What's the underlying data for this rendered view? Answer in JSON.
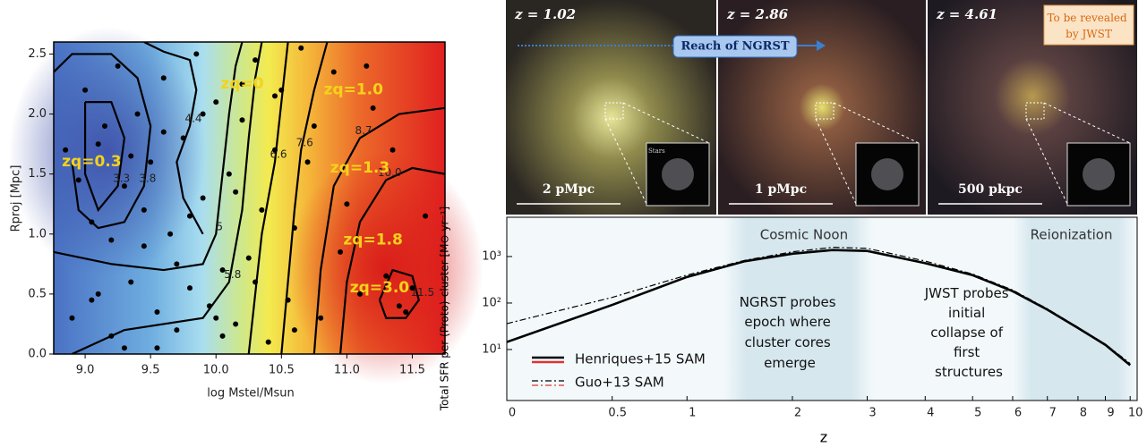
{
  "chart_data": [
    {
      "type": "contour",
      "xlabel": "log Mstel/Msun",
      "ylabel": "Rproj [Mpc]",
      "xlim": [
        8.76,
        11.75
      ],
      "ylim": [
        0,
        2.6
      ],
      "xticks": [
        {
          "value": 9,
          "label": "9.0"
        },
        {
          "value": 9.5,
          "label": "9.5"
        },
        {
          "value": 10,
          "label": "10.0"
        },
        {
          "value": 10.5,
          "label": "10.5"
        },
        {
          "value": 11,
          "label": "11.0"
        },
        {
          "value": 11.5,
          "label": "11.5"
        }
      ],
      "yticks": [
        {
          "value": 0,
          "label": "0.0"
        },
        {
          "value": 0.5,
          "label": "0.5"
        },
        {
          "value": 1,
          "label": "1.0"
        },
        {
          "value": 1.5,
          "label": "1.5"
        },
        {
          "value": 2,
          "label": "2.0"
        },
        {
          "value": 2.5,
          "label": "2.5"
        }
      ],
      "contours": [
        {
          "level": 4.4,
          "x": [
            9.45,
            9.6,
            9.8,
            9.85,
            9.8,
            9.7,
            9.75,
            9.9
          ],
          "y": [
            2.6,
            2.52,
            2.45,
            2.2,
            1.9,
            1.6,
            1.3,
            1.0
          ]
        },
        {
          "level": 3.8,
          "x": [
            8.76,
            8.9,
            9.2,
            9.4,
            9.5,
            9.45,
            9.3,
            9.1,
            8.95,
            8.9
          ],
          "y": [
            2.35,
            2.5,
            2.5,
            2.3,
            1.9,
            1.4,
            1.1,
            1.05,
            1.2,
            1.6
          ]
        },
        {
          "level": 3.3,
          "x": [
            9.0,
            9.2,
            9.3,
            9.25,
            9.1,
            9.0,
            9.0
          ],
          "y": [
            2.1,
            2.1,
            1.8,
            1.4,
            1.2,
            1.5,
            2.1
          ]
        },
        {
          "level": 5.0,
          "x": [
            8.76,
            9.2,
            9.6,
            9.9,
            10.0,
            10.05,
            10.1,
            10.15,
            10.2
          ],
          "y": [
            0.85,
            0.75,
            0.7,
            0.75,
            1.0,
            1.5,
            2.0,
            2.4,
            2.6
          ]
        },
        {
          "level": 5.8,
          "x": [
            8.9,
            9.3,
            9.6,
            9.9,
            10.1,
            10.2,
            10.25,
            10.3,
            10.35
          ],
          "y": [
            0.0,
            0.2,
            0.25,
            0.3,
            0.6,
            1.2,
            1.8,
            2.3,
            2.6
          ]
        },
        {
          "level": 6.6,
          "x": [
            10.25,
            10.3,
            10.35,
            10.45,
            10.5,
            10.55
          ],
          "y": [
            0,
            0.5,
            1.0,
            1.6,
            2.1,
            2.6
          ]
        },
        {
          "level": 7.6,
          "x": [
            10.5,
            10.55,
            10.6,
            10.65,
            10.75,
            10.85
          ],
          "y": [
            0,
            0.6,
            1.2,
            1.7,
            2.2,
            2.6
          ]
        },
        {
          "level": 8.7,
          "x": [
            10.75,
            10.8,
            10.9,
            11.1,
            11.4,
            11.75
          ],
          "y": [
            0,
            0.7,
            1.4,
            1.8,
            2.0,
            2.05
          ]
        },
        {
          "level": {
            "value": 10,
            "label": "10.0"
          },
          "x": [
            10.95,
            11.0,
            11.1,
            11.3,
            11.5,
            11.75
          ],
          "y": [
            0,
            0.6,
            1.1,
            1.45,
            1.55,
            1.5
          ]
        },
        {
          "level": 11.5,
          "x": [
            11.25,
            11.35,
            11.5,
            11.55,
            11.45,
            11.3,
            11.25
          ],
          "y": [
            0.45,
            0.7,
            0.65,
            0.45,
            0.3,
            0.3,
            0.45
          ]
        }
      ],
      "scatter": {
        "color": "#000",
        "x": [
          8.85,
          8.9,
          9.0,
          9.05,
          9.1,
          9.15,
          9.2,
          9.25,
          9.3,
          9.35,
          9.4,
          9.45,
          9.5,
          9.55,
          9.6,
          9.65,
          9.7,
          9.75,
          9.8,
          9.85,
          9.9,
          9.95,
          10.0,
          10.05,
          10.1,
          10.15,
          10.2,
          10.25,
          10.3,
          10.35,
          10.4,
          10.45,
          10.5,
          10.55,
          10.6,
          10.65,
          10.7,
          10.8,
          10.9,
          11.0,
          11.1,
          11.2,
          11.3,
          11.4,
          11.5,
          11.6,
          8.95,
          9.1,
          9.2,
          9.3,
          9.45,
          9.6,
          9.7,
          9.9,
          10.05,
          10.15,
          10.3,
          10.45,
          10.6,
          10.75,
          10.95,
          11.15,
          11.35,
          11.45,
          9.05,
          9.35,
          9.55,
          9.8,
          10.0,
          10.2
        ],
        "y": [
          1.7,
          0.3,
          2.2,
          1.1,
          0.5,
          1.9,
          0.15,
          2.4,
          1.4,
          0.6,
          2.0,
          0.9,
          1.6,
          0.35,
          2.3,
          1.0,
          0.2,
          1.8,
          0.55,
          2.5,
          1.3,
          0.4,
          2.1,
          0.7,
          1.5,
          0.25,
          1.95,
          0.8,
          2.45,
          1.2,
          0.1,
          1.7,
          2.2,
          0.45,
          1.05,
          2.55,
          1.6,
          0.3,
          2.35,
          1.25,
          0.5,
          2.05,
          0.65,
          0.4,
          0.55,
          1.15,
          1.45,
          1.75,
          0.95,
          0.05,
          1.2,
          1.85,
          0.75,
          2.0,
          0.15,
          1.35,
          0.6,
          2.15,
          0.2,
          1.9,
          0.85,
          2.4,
          1.7,
          0.35,
          0.45,
          1.65,
          0.05,
          1.15,
          0.3,
          2.25
        ]
      },
      "annotations": [
        "zq=0.3",
        "zq=0",
        "zq=1.0",
        "zq=1.3",
        "zq=1.8",
        "zq=3.0"
      ]
    },
    {
      "type": "line",
      "xlabel": "z",
      "ylabel": "Total SFR per (Proto)-cluster [M⊙ yr⁻¹]",
      "xscale": "log1p",
      "yscale": "log",
      "xlim": [
        0,
        10.3
      ],
      "ylim": [
        0.8,
        7000
      ],
      "xticks": [
        0,
        0.5,
        1,
        2,
        3,
        4,
        5,
        6,
        7,
        8,
        9,
        10
      ],
      "yticks": [
        {
          "value": 10,
          "label": "10¹"
        },
        {
          "value": 100,
          "label": "10²"
        },
        {
          "value": 1000,
          "label": "10³"
        }
      ],
      "x": [
        0,
        0.5,
        1,
        1.5,
        2,
        2.5,
        3,
        4,
        5,
        6,
        7,
        8,
        9,
        10
      ],
      "series": [
        {
          "name": "Henriques+15 SAM",
          "color": "#000",
          "values": [
            14.5,
            91,
            363,
            794,
            1150,
            1380,
            1320,
            720,
            398,
            180,
            72,
            29,
            12.6,
            4.6
          ]
        },
        {
          "name": "Guo+13 SAM",
          "color": "#000",
          "values": [
            36,
            132,
            400,
            830,
            1260,
            1580,
            1500,
            800,
            420,
            190,
            75,
            30,
            13,
            5
          ]
        }
      ],
      "bands": [
        {
          "label": "Cosmic Noon",
          "range": [
            1.4,
            3.1
          ]
        },
        {
          "label": "Reionization",
          "range": [
            6.3,
            10.3
          ]
        }
      ],
      "annotations": [
        "NGRST probes epoch where cluster cores emerge",
        "JWST probes initial collapse of first structures"
      ]
    }
  ],
  "images": {
    "panels": [
      {
        "z": "z = 1.02",
        "scale": "2 pMpc"
      },
      {
        "z": "z = 2.86",
        "scale": "1 pMpc"
      },
      {
        "z": "z = 4.61",
        "scale": "500 pkpc"
      }
    ],
    "inset_label": "Stars",
    "arrow_label": "Reach of NGRST",
    "note": "To be revealed by JWST"
  }
}
